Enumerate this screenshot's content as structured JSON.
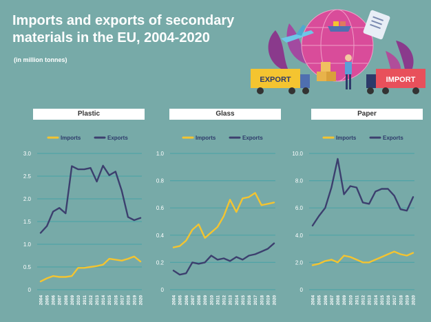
{
  "header": {
    "title_line1": "Imports and exports of secondary",
    "title_line2": "materials in the EU, 2004-2020",
    "subtitle": "(in million tonnes)"
  },
  "illustration": {
    "export_label": "EXPORT",
    "import_label": "IMPORT"
  },
  "colors": {
    "imports": "#f4c430",
    "exports": "#3c3f6e",
    "grid": "#4fa3a6",
    "background": "#77aaa8"
  },
  "chart_data": [
    {
      "type": "line",
      "title": "Plastic",
      "x": [
        "2004",
        "2005",
        "2006",
        "2007",
        "2008",
        "2009",
        "2010",
        "2011",
        "2012",
        "2013",
        "2014",
        "2015",
        "2016",
        "2017",
        "2018",
        "2019",
        "2020"
      ],
      "series": [
        {
          "name": "Imports",
          "values": [
            0.18,
            0.25,
            0.3,
            0.28,
            0.28,
            0.3,
            0.48,
            0.48,
            0.5,
            0.52,
            0.55,
            0.68,
            0.66,
            0.64,
            0.68,
            0.73,
            0.62
          ]
        },
        {
          "name": "Exports",
          "values": [
            1.25,
            1.4,
            1.72,
            1.8,
            1.68,
            2.72,
            2.65,
            2.65,
            2.68,
            2.38,
            2.73,
            2.52,
            2.6,
            2.18,
            1.6,
            1.53,
            1.58
          ]
        }
      ],
      "ylim": [
        0,
        3.0
      ],
      "yticks": [
        "0",
        "0.5",
        "1.0",
        "1.5",
        "2.0",
        "2.5",
        "3.0"
      ],
      "legend": "top"
    },
    {
      "type": "line",
      "title": "Glass",
      "x": [
        "2004",
        "2005",
        "2006",
        "2007",
        "2008",
        "2009",
        "2010",
        "2011",
        "2012",
        "2013",
        "2014",
        "2015",
        "2016",
        "2017",
        "2018",
        "2019",
        "2020"
      ],
      "series": [
        {
          "name": "Imports",
          "values": [
            0.31,
            0.32,
            0.36,
            0.44,
            0.48,
            0.38,
            0.42,
            0.46,
            0.54,
            0.66,
            0.57,
            0.67,
            0.68,
            0.71,
            0.62,
            0.63,
            0.64
          ]
        },
        {
          "name": "Exports",
          "values": [
            0.14,
            0.11,
            0.12,
            0.2,
            0.19,
            0.2,
            0.25,
            0.22,
            0.23,
            0.21,
            0.24,
            0.22,
            0.25,
            0.26,
            0.28,
            0.3,
            0.34
          ]
        }
      ],
      "ylim": [
        0,
        1.0
      ],
      "yticks": [
        "0",
        "0.2",
        "0.4",
        "0.6",
        "0.8",
        "1.0"
      ],
      "legend": "top"
    },
    {
      "type": "line",
      "title": "Paper",
      "x": [
        "2004",
        "2005",
        "2006",
        "2007",
        "2008",
        "2009",
        "2010",
        "2011",
        "2012",
        "2013",
        "2014",
        "2015",
        "2016",
        "2017",
        "2018",
        "2019",
        "2020"
      ],
      "series": [
        {
          "name": "Imports",
          "values": [
            1.8,
            1.9,
            2.1,
            2.2,
            2.0,
            2.5,
            2.4,
            2.2,
            2.0,
            2.0,
            2.2,
            2.4,
            2.6,
            2.8,
            2.6,
            2.5,
            2.7
          ]
        },
        {
          "name": "Exports",
          "values": [
            4.7,
            5.4,
            6.0,
            7.5,
            9.6,
            7.0,
            7.6,
            7.5,
            6.4,
            6.3,
            7.2,
            7.4,
            7.4,
            6.9,
            5.9,
            5.8,
            6.8
          ]
        }
      ],
      "ylim": [
        0,
        10.0
      ],
      "yticks": [
        "0",
        "2.0",
        "4.0",
        "6.0",
        "8.0",
        "10.0"
      ],
      "legend": "top"
    }
  ]
}
